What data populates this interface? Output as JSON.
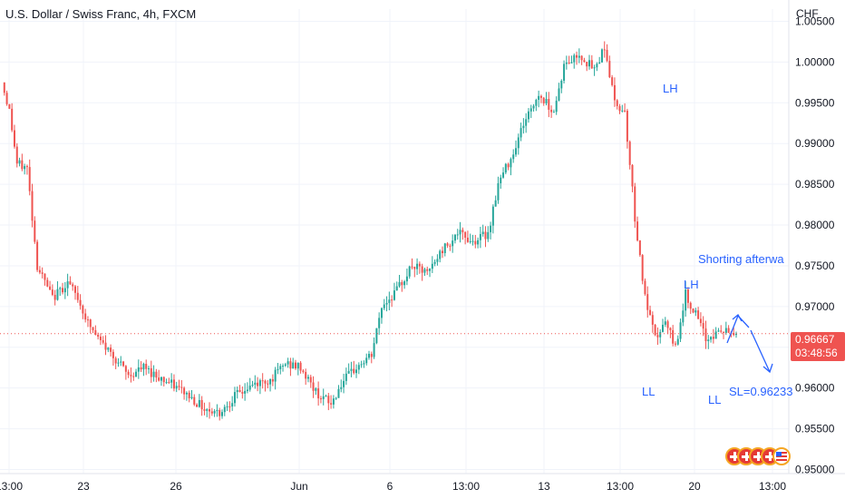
{
  "chart_data": {
    "type": "candlestick",
    "title": "U.S. Dollar / Swiss Franc, 4h, FXCM",
    "y_unit": "CHF",
    "ylim": [
      0.9495,
      1.0065
    ],
    "y_ticks": [
      "1.00500",
      "1.00000",
      "0.99500",
      "0.99000",
      "0.98500",
      "0.98000",
      "0.97500",
      "0.97000",
      "0.96500",
      "0.96000",
      "0.95500",
      "0.95000"
    ],
    "x_ticks": [
      "13:00",
      "23",
      "26",
      "Jun",
      "6",
      "13:00",
      "13",
      "13:00",
      "20",
      "13:00"
    ],
    "last_price": "0.96667",
    "countdown": "03:48:56",
    "colors": {
      "up": "#26a69a",
      "down": "#ef5350",
      "grid": "#f0f3fa",
      "text": "#131722",
      "annotation": "#2962ff",
      "price_line": "#ef5350"
    },
    "grid": true,
    "waypoints": [
      [
        0,
        0.9975
      ],
      [
        3,
        0.994
      ],
      [
        6,
        0.9875
      ],
      [
        10,
        0.987
      ],
      [
        14,
        0.975
      ],
      [
        20,
        0.971
      ],
      [
        26,
        0.973
      ],
      [
        30,
        0.971
      ],
      [
        34,
        0.968
      ],
      [
        38,
        0.966
      ],
      [
        44,
        0.964
      ],
      [
        50,
        0.9615
      ],
      [
        56,
        0.9625
      ],
      [
        64,
        0.961
      ],
      [
        72,
        0.9595
      ],
      [
        80,
        0.9575
      ],
      [
        86,
        0.957
      ],
      [
        92,
        0.959
      ],
      [
        100,
        0.9605
      ],
      [
        106,
        0.961
      ],
      [
        112,
        0.963
      ],
      [
        118,
        0.9625
      ],
      [
        124,
        0.9595
      ],
      [
        130,
        0.958
      ],
      [
        134,
        0.9605
      ],
      [
        140,
        0.9625
      ],
      [
        146,
        0.964
      ],
      [
        150,
        0.97
      ],
      [
        156,
        0.972
      ],
      [
        162,
        0.975
      ],
      [
        168,
        0.974
      ],
      [
        174,
        0.977
      ],
      [
        180,
        0.979
      ],
      [
        186,
        0.978
      ],
      [
        192,
        0.979
      ],
      [
        196,
        0.985
      ],
      [
        202,
        0.989
      ],
      [
        206,
        0.9925
      ],
      [
        212,
        0.996
      ],
      [
        218,
        0.994
      ],
      [
        222,
        0.9995
      ],
      [
        228,
        1.001
      ],
      [
        234,
        0.999
      ],
      [
        238,
        1.002
      ],
      [
        242,
        0.995
      ],
      [
        246,
        0.994
      ],
      [
        250,
        0.981
      ],
      [
        254,
        0.971
      ],
      [
        258,
        0.966
      ],
      [
        262,
        0.968
      ],
      [
        266,
        0.965
      ],
      [
        270,
        0.9715
      ],
      [
        274,
        0.969
      ],
      [
        278,
        0.966
      ],
      [
        284,
        0.967
      ],
      [
        290,
        0.96667
      ]
    ],
    "annotations": [
      {
        "text": "LH",
        "label": "lh_top"
      },
      {
        "text": "LH",
        "label": "lh_mid"
      },
      {
        "text": "Shorting afterwa",
        "label": "shorting"
      },
      {
        "text": "LL",
        "label": "ll_1"
      },
      {
        "text": "LL",
        "label": "ll_2"
      },
      {
        "text": "SL=0.96233",
        "label": "sl"
      }
    ]
  }
}
